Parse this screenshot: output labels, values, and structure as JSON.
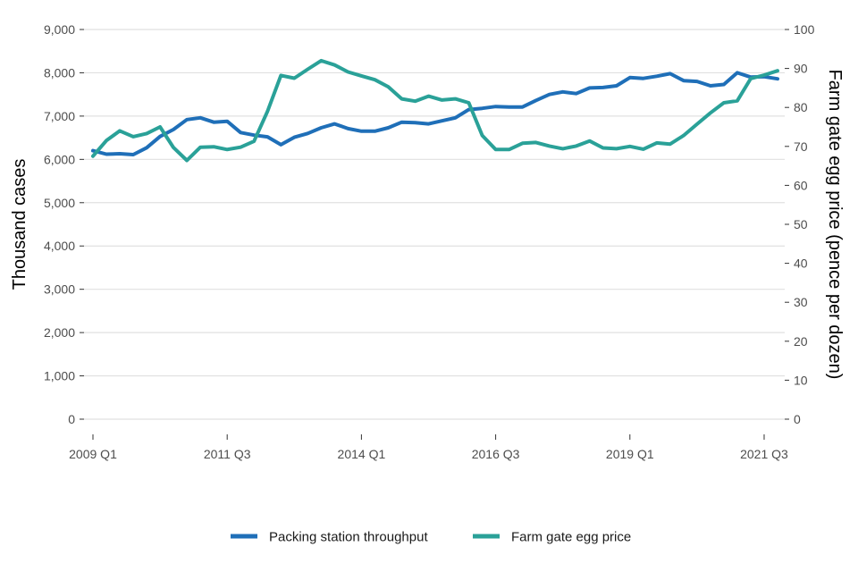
{
  "chart_data": {
    "type": "line",
    "title": "",
    "xlabel": "",
    "ylabel": "Thousand cases",
    "y2label": "Farm gate egg price (pence per dozen)",
    "ylim": [
      0,
      9000
    ],
    "y2lim": [
      0,
      100
    ],
    "yticks": [
      0,
      1000,
      2000,
      3000,
      4000,
      5000,
      6000,
      7000,
      8000,
      9000
    ],
    "ytick_labels": [
      "0",
      "1,000",
      "2,000",
      "3,000",
      "4,000",
      "5,000",
      "6,000",
      "7,000",
      "8,000",
      "9,000"
    ],
    "y2ticks": [
      0,
      10,
      20,
      30,
      40,
      50,
      60,
      70,
      80,
      90,
      100
    ],
    "y2tick_labels": [
      "0",
      "10",
      "20",
      "30",
      "40",
      "50",
      "60",
      "70",
      "80",
      "90",
      "100"
    ],
    "xtick_labels": [
      {
        "index": 0,
        "label": "2009 Q1"
      },
      {
        "index": 10,
        "label": "2011 Q3"
      },
      {
        "index": 20,
        "label": "2014 Q1"
      },
      {
        "index": 30,
        "label": "2016 Q3"
      },
      {
        "index": 40,
        "label": "2019 Q1"
      },
      {
        "index": 50,
        "label": "2021 Q3"
      }
    ],
    "grid": true,
    "legend_position": "bottom",
    "series": [
      {
        "name": "Packing station throughput",
        "axis": "left",
        "color": "#1f6fb8",
        "values": [
          6200,
          6120,
          6130,
          6110,
          6270,
          6530,
          6690,
          6920,
          6960,
          6860,
          6880,
          6620,
          6560,
          6520,
          6340,
          6510,
          6600,
          6730,
          6820,
          6710,
          6650,
          6650,
          6730,
          6860,
          6850,
          6820,
          6890,
          6960,
          7150,
          7180,
          7220,
          7210,
          7210,
          7360,
          7500,
          7560,
          7520,
          7650,
          7660,
          7700,
          7890,
          7870,
          7920,
          7980,
          7820,
          7800,
          7700,
          7730,
          8000,
          7900,
          7910,
          7860
        ]
      },
      {
        "name": "Farm gate egg price",
        "axis": "right",
        "color": "#2aa198",
        "values": [
          67.5,
          71.5,
          74.0,
          72.5,
          73.3,
          75.0,
          69.7,
          66.4,
          69.8,
          69.9,
          69.2,
          69.8,
          71.3,
          79.0,
          88.2,
          87.5,
          89.8,
          92.0,
          90.9,
          89.1,
          88.1,
          87.1,
          85.3,
          82.2,
          81.6,
          82.9,
          81.9,
          82.2,
          81.2,
          72.8,
          69.2,
          69.2,
          70.8,
          71.0,
          70.1,
          69.4,
          70.1,
          71.4,
          69.6,
          69.4,
          70.0,
          69.3,
          70.9,
          70.6,
          72.8,
          75.7,
          78.6,
          81.2,
          81.7,
          87.4,
          88.3,
          89.4
        ]
      }
    ]
  }
}
